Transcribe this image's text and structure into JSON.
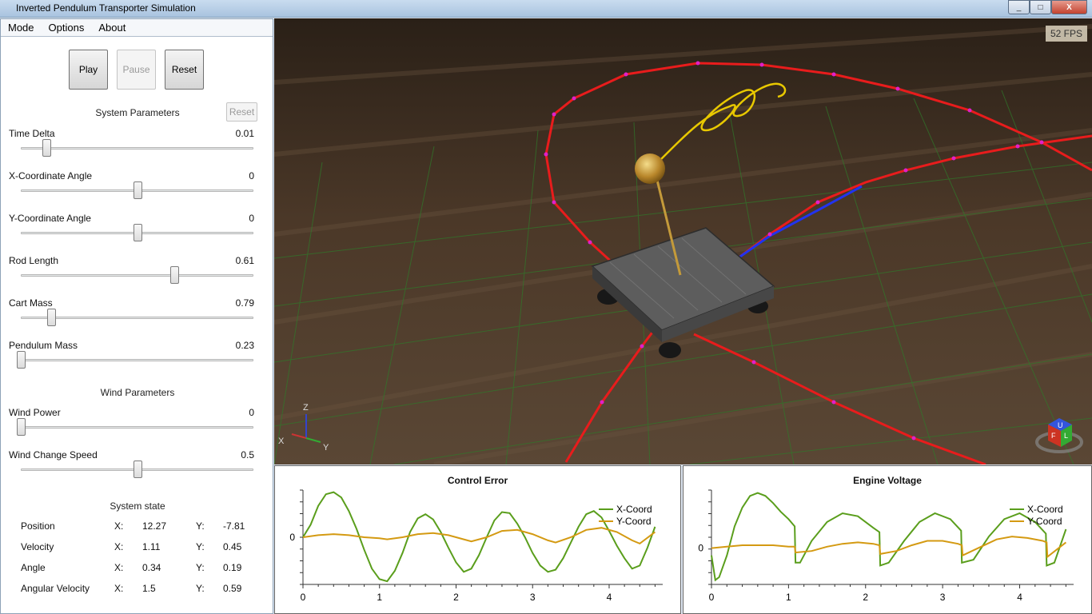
{
  "window": {
    "title": "Inverted Pendulum Transporter Simulation",
    "buttons": [
      "_",
      "□",
      "X"
    ]
  },
  "menu": [
    "Mode",
    "Options",
    "About"
  ],
  "controls": {
    "play": "Play",
    "pause": "Pause",
    "reset": "Reset"
  },
  "system_parameters": {
    "title": "System Parameters",
    "reset_label": "Reset",
    "items": [
      {
        "name": "Time Delta",
        "value": "0.01",
        "level": 0.11
      },
      {
        "name": "X-Coordinate Angle",
        "value": "0",
        "level": 0.5
      },
      {
        "name": "Y-Coordinate Angle",
        "value": "0",
        "level": 0.5
      },
      {
        "name": "Rod Length",
        "value": "0.61",
        "level": 0.66
      },
      {
        "name": "Cart Mass",
        "value": "0.79",
        "level": 0.13
      },
      {
        "name": "Pendulum Mass",
        "value": "0.23",
        "level": 0.0
      }
    ]
  },
  "wind_parameters": {
    "title": "Wind Parameters",
    "items": [
      {
        "name": "Wind Power",
        "value": "0",
        "level": 0.0
      },
      {
        "name": "Wind Change Speed",
        "value": "0.5",
        "level": 0.5
      }
    ]
  },
  "system_state": {
    "title": "System state",
    "rows": [
      {
        "label": "Position",
        "x_label": "X:",
        "x": "12.27",
        "y_label": "Y:",
        "y": "-7.81"
      },
      {
        "label": "Velocity",
        "x_label": "X:",
        "x": "1.11",
        "y_label": "Y:",
        "y": "0.45"
      },
      {
        "label": "Angle",
        "x_label": "X:",
        "x": "0.34",
        "y_label": "Y:",
        "y": "0.19"
      },
      {
        "label": "Angular Velocity",
        "x_label": "X:",
        "x": "1.5",
        "y_label": "Y:",
        "y": "0.59"
      }
    ]
  },
  "viewport": {
    "fps": "52 FPS",
    "axis_labels": {
      "x": "X",
      "y": "Y",
      "z": "Z"
    },
    "cube_faces": [
      "U",
      "F",
      "L"
    ]
  },
  "colors": {
    "x_series": "#5a9e1c",
    "y_series": "#d49a12",
    "trajectory": "#e81c1c",
    "marker": "#e020c8",
    "pendulum_path": "#e8c800"
  },
  "chart_data": [
    {
      "type": "line",
      "title": "Control Error",
      "xlim": [
        0,
        4.7
      ],
      "ylim": [
        -0.45,
        0.45
      ],
      "x_ticks": [
        "0",
        "1",
        "2",
        "3",
        "4"
      ],
      "y_ticks": [
        "0"
      ],
      "legend_position": "top-right",
      "series": [
        {
          "name": "X-Coord",
          "x": [
            0,
            0.1,
            0.2,
            0.3,
            0.4,
            0.5,
            0.6,
            0.7,
            0.8,
            0.9,
            1.0,
            1.1,
            1.2,
            1.3,
            1.4,
            1.5,
            1.6,
            1.7,
            1.8,
            1.9,
            2.0,
            2.1,
            2.2,
            2.3,
            2.4,
            2.5,
            2.6,
            2.7,
            2.8,
            2.9,
            3.0,
            3.1,
            3.2,
            3.3,
            3.4,
            3.5,
            3.6,
            3.7,
            3.8,
            3.9,
            4.0,
            4.1,
            4.2,
            4.3,
            4.4,
            4.5,
            4.6
          ],
          "values": [
            0,
            0.12,
            0.3,
            0.41,
            0.43,
            0.38,
            0.25,
            0.08,
            -0.12,
            -0.3,
            -0.4,
            -0.42,
            -0.32,
            -0.15,
            0.05,
            0.18,
            0.22,
            0.17,
            0.05,
            -0.1,
            -0.24,
            -0.33,
            -0.3,
            -0.17,
            0.0,
            0.16,
            0.24,
            0.23,
            0.13,
            0.0,
            -0.15,
            -0.27,
            -0.33,
            -0.31,
            -0.2,
            -0.05,
            0.1,
            0.22,
            0.25,
            0.19,
            0.06,
            -0.08,
            -0.2,
            -0.3,
            -0.27,
            -0.1,
            0.1
          ]
        },
        {
          "name": "Y-Coord",
          "x": [
            0,
            0.2,
            0.4,
            0.6,
            0.8,
            1.0,
            1.1,
            1.3,
            1.5,
            1.7,
            1.9,
            2.1,
            2.2,
            2.4,
            2.6,
            2.8,
            3.0,
            3.2,
            3.3,
            3.5,
            3.7,
            3.9,
            4.1,
            4.3,
            4.4,
            4.6
          ],
          "values": [
            0,
            0.02,
            0.03,
            0.02,
            0.0,
            -0.01,
            -0.02,
            0.0,
            0.03,
            0.04,
            0.02,
            -0.02,
            -0.04,
            0.0,
            0.06,
            0.07,
            0.03,
            -0.03,
            -0.05,
            0.0,
            0.07,
            0.09,
            0.05,
            -0.03,
            -0.06,
            0.05
          ]
        }
      ]
    },
    {
      "type": "line",
      "title": "Engine Voltage",
      "xlim": [
        0,
        4.7
      ],
      "ylim": [
        -0.25,
        0.4
      ],
      "x_ticks": [
        "0",
        "1",
        "2",
        "3",
        "4"
      ],
      "y_ticks": [
        "0"
      ],
      "legend_position": "top-right",
      "series": [
        {
          "name": "X-Coord",
          "x": [
            0,
            0.05,
            0.1,
            0.2,
            0.3,
            0.4,
            0.5,
            0.6,
            0.7,
            0.8,
            0.9,
            1.0,
            1.08,
            1.09,
            1.15,
            1.3,
            1.5,
            1.7,
            1.9,
            2.1,
            2.18,
            2.19,
            2.3,
            2.5,
            2.7,
            2.9,
            3.1,
            3.24,
            3.25,
            3.4,
            3.6,
            3.8,
            4.0,
            4.2,
            4.34,
            4.35,
            4.45,
            4.6
          ],
          "values": [
            -0.05,
            -0.22,
            -0.2,
            -0.05,
            0.15,
            0.28,
            0.36,
            0.38,
            0.36,
            0.31,
            0.25,
            0.2,
            0.15,
            -0.1,
            -0.1,
            0.05,
            0.18,
            0.24,
            0.22,
            0.14,
            0.11,
            -0.12,
            -0.1,
            0.05,
            0.18,
            0.24,
            0.2,
            0.12,
            -0.1,
            -0.08,
            0.08,
            0.2,
            0.24,
            0.18,
            0.1,
            -0.12,
            -0.1,
            0.13
          ]
        },
        {
          "name": "Y-Coord",
          "x": [
            0,
            0.2,
            0.4,
            0.6,
            0.8,
            1.0,
            1.08,
            1.09,
            1.3,
            1.5,
            1.7,
            1.9,
            2.1,
            2.18,
            2.19,
            2.4,
            2.6,
            2.8,
            3.0,
            3.2,
            3.25,
            3.26,
            3.5,
            3.7,
            3.9,
            4.1,
            4.3,
            4.35,
            4.36,
            4.6
          ],
          "values": [
            0,
            0.01,
            0.02,
            0.02,
            0.02,
            0.01,
            0.01,
            -0.03,
            -0.02,
            0.01,
            0.03,
            0.04,
            0.03,
            0.02,
            -0.04,
            -0.02,
            0.02,
            0.05,
            0.05,
            0.03,
            0.02,
            -0.05,
            0.01,
            0.06,
            0.08,
            0.07,
            0.05,
            0.04,
            -0.06,
            0.04
          ]
        }
      ]
    }
  ]
}
